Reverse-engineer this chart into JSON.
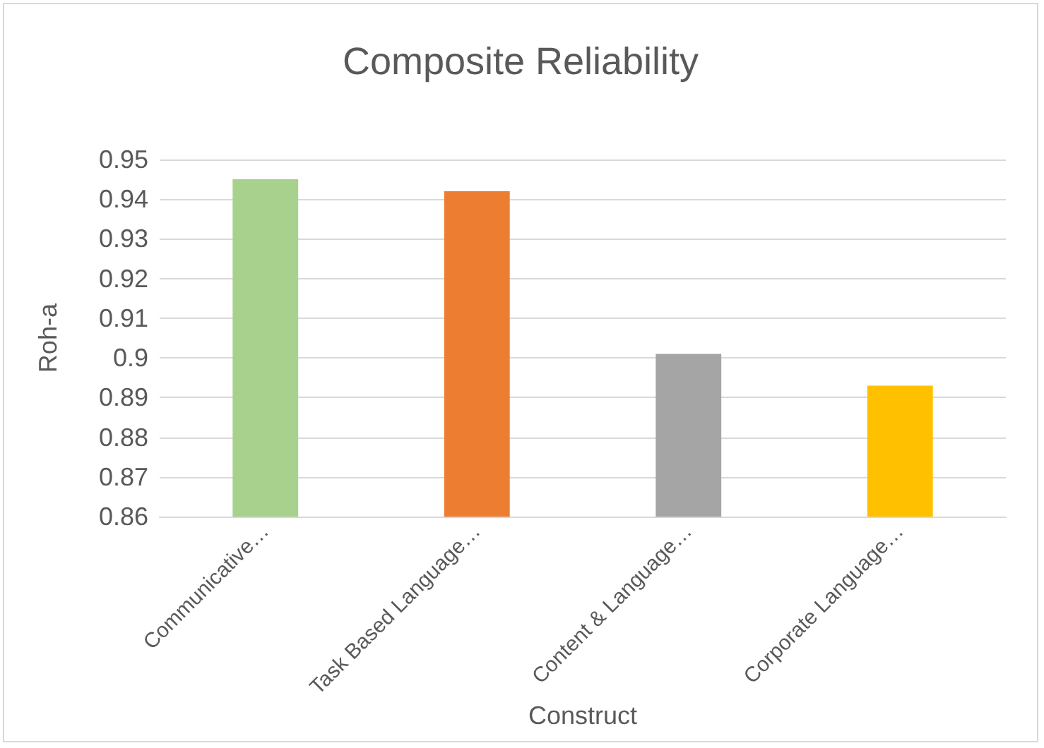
{
  "chart_data": {
    "type": "bar",
    "title": "Composite Reliability",
    "xlabel": "Construct",
    "ylabel": "Roh-a",
    "categories": [
      "Communicative…",
      "Task Based Language…",
      "Content & Language…",
      "Corporate Language…"
    ],
    "values": [
      0.945,
      0.942,
      0.901,
      0.893
    ],
    "colors": [
      "#a9d18e",
      "#ed7d31",
      "#a5a5a5",
      "#ffc000"
    ],
    "ylim": [
      0.86,
      0.95
    ],
    "yticks": [
      0.86,
      0.87,
      0.88,
      0.89,
      0.9,
      0.91,
      0.92,
      0.93,
      0.94,
      0.95
    ],
    "grid": "y"
  }
}
